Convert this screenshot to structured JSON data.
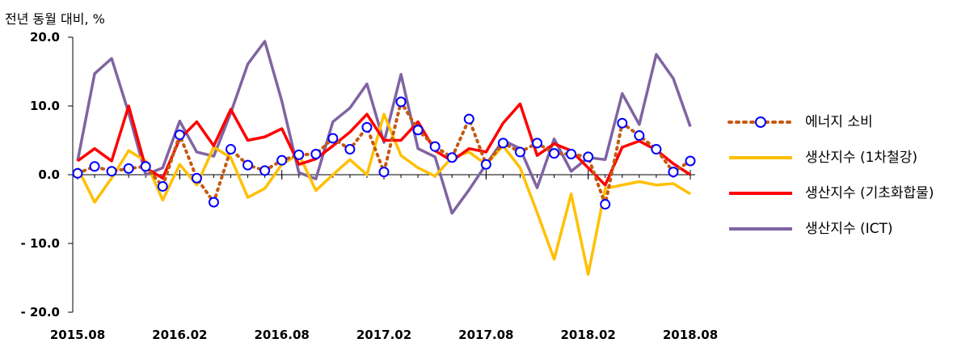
{
  "chart_data": {
    "type": "line",
    "ylabel": "전년 동월 대비, %",
    "ylim": [
      -20,
      20
    ],
    "y_ticks": [
      20,
      10,
      0,
      -10,
      -20
    ],
    "y_tick_labels": [
      "20.0",
      "10.0",
      "0.0",
      "- 10.0",
      "- 20.0"
    ],
    "x": [
      "2015.08",
      "2015.09",
      "2015.10",
      "2015.11",
      "2015.12",
      "2016.01",
      "2016.02",
      "2016.03",
      "2016.04",
      "2016.05",
      "2016.06",
      "2016.07",
      "2016.08",
      "2016.09",
      "2016.10",
      "2016.11",
      "2016.12",
      "2017.01",
      "2017.02",
      "2017.03",
      "2017.04",
      "2017.05",
      "2017.06",
      "2017.07",
      "2017.08",
      "2017.09",
      "2017.10",
      "2017.11",
      "2017.12",
      "2018.01",
      "2018.02",
      "2018.03",
      "2018.04",
      "2018.05",
      "2018.06",
      "2018.07",
      "2018.08"
    ],
    "x_tick_labels": [
      "2015.08",
      "2016.02",
      "2016.08",
      "2017.02",
      "2017.08",
      "2018.02",
      "2018.08"
    ],
    "grid": false,
    "legend_position": "right",
    "series": [
      {
        "name": "에너지 소비",
        "style": "dotted-with-circle-markers",
        "color": "#C55A11",
        "marker_color": "#0000FF",
        "values": [
          0.2,
          1.2,
          0.5,
          0.9,
          1.2,
          -1.7,
          5.8,
          -0.5,
          -4.0,
          3.7,
          1.4,
          0.6,
          2.1,
          2.9,
          3.0,
          5.3,
          3.7,
          6.9,
          0.4,
          10.6,
          6.5,
          4.1,
          2.5,
          8.1,
          1.5,
          4.6,
          3.3,
          4.6,
          3.1,
          3.0,
          2.6,
          -4.3,
          7.5,
          5.7,
          3.7,
          0.4,
          2.0
        ]
      },
      {
        "name": "생산지수 (1차철강)",
        "color": "#FFC000",
        "values": [
          1.0,
          -4.0,
          -0.5,
          3.5,
          2.0,
          -3.7,
          1.5,
          -1.5,
          4.0,
          2.5,
          -3.3,
          -2.0,
          1.5,
          3.0,
          -2.3,
          0.0,
          2.2,
          0.0,
          8.8,
          2.8,
          1.0,
          -0.2,
          2.5,
          3.3,
          1.5,
          4.2,
          1.0,
          -5.5,
          -12.3,
          -2.8,
          -14.5,
          -2.0,
          -1.5,
          -1.0,
          -1.5,
          -1.3,
          -2.8
        ]
      },
      {
        "name": "생산지수 (기초화합물)",
        "color": "#FF0000",
        "values": [
          2.0,
          3.8,
          2.0,
          10.0,
          1.0,
          -0.5,
          5.2,
          7.7,
          4.2,
          9.5,
          5.0,
          5.5,
          6.7,
          1.5,
          2.3,
          4.2,
          6.2,
          8.8,
          5.0,
          5.0,
          7.7,
          3.5,
          2.0,
          3.8,
          3.3,
          7.5,
          10.3,
          2.8,
          4.5,
          3.5,
          1.0,
          -1.5,
          4.0,
          4.9,
          3.6,
          1.6,
          0.0
        ]
      },
      {
        "name": "생산지수 (ICT)",
        "color": "#8064A2",
        "values": [
          2.0,
          14.7,
          16.9,
          9.0,
          0.0,
          1.0,
          7.8,
          3.3,
          2.7,
          9.0,
          16.1,
          19.4,
          10.7,
          0.3,
          -0.6,
          7.7,
          9.7,
          13.2,
          4.7,
          14.6,
          3.8,
          2.6,
          -5.6,
          -2.2,
          1.5,
          5.0,
          3.8,
          -1.9,
          5.2,
          0.5,
          2.5,
          2.2,
          11.8,
          7.3,
          17.5,
          14.0,
          7.0
        ]
      }
    ]
  }
}
